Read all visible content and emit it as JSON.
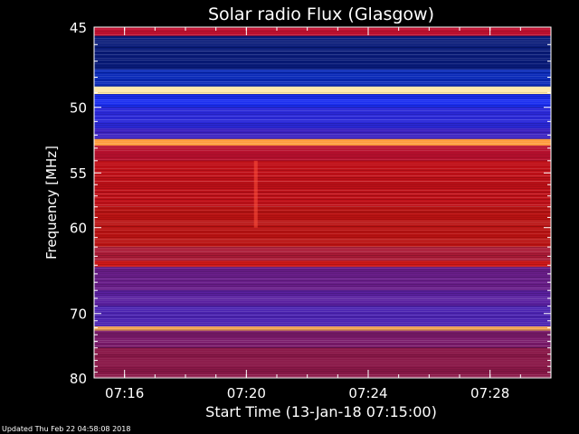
{
  "chart_data": {
    "type": "heatmap",
    "title": "Solar radio Flux (Glasgow)",
    "xlabel": "Start Time (13-Jan-18 07:15:00)",
    "ylabel": "Frequency [MHz]",
    "footer": "Updated Thu Feb 22 04:58:08 2018",
    "x_range": [
      "07:15:00",
      "07:30:00"
    ],
    "y_range": [
      45,
      80
    ],
    "y_scale": "reciprocal",
    "x_ticks": [
      "07:16",
      "07:20",
      "07:24",
      "07:28"
    ],
    "y_ticks": [
      45,
      50,
      55,
      60,
      70,
      80
    ],
    "colors": {
      "background": "#000000",
      "axis": "#ffffff",
      "low": "#0a1fd6",
      "mid": "#7a1a7a",
      "high": "#c8100c",
      "peak": "#ffe9a8"
    },
    "bands": [
      {
        "f1": 45.0,
        "f2": 45.5,
        "color": "#c01030"
      },
      {
        "f1": 45.5,
        "f2": 47.5,
        "color": "#081a78"
      },
      {
        "f1": 47.5,
        "f2": 48.6,
        "color": "#0a2ab8"
      },
      {
        "f1": 48.6,
        "f2": 49.1,
        "color": "#ffe9a8"
      },
      {
        "f1": 49.1,
        "f2": 50.0,
        "color": "#1a2ef0"
      },
      {
        "f1": 50.0,
        "f2": 51.5,
        "color": "#2a28d8"
      },
      {
        "f1": 51.5,
        "f2": 52.3,
        "color": "#3a20c0"
      },
      {
        "f1": 52.3,
        "f2": 52.8,
        "color": "#ff9a3a"
      },
      {
        "f1": 52.8,
        "f2": 54.0,
        "color": "#b8102e"
      },
      {
        "f1": 54.0,
        "f2": 58.0,
        "color": "#c01018"
      },
      {
        "f1": 58.0,
        "f2": 62.0,
        "color": "#b81212"
      },
      {
        "f1": 62.0,
        "f2": 63.5,
        "color": "#aa1a36"
      },
      {
        "f1": 63.5,
        "f2": 64.2,
        "color": "#d01818"
      },
      {
        "f1": 64.2,
        "f2": 67.0,
        "color": "#6a1e8a"
      },
      {
        "f1": 67.0,
        "f2": 69.0,
        "color": "#5a20a0"
      },
      {
        "f1": 69.0,
        "f2": 71.8,
        "color": "#4a22b0"
      },
      {
        "f1": 71.8,
        "f2": 72.4,
        "color": "#ffb060"
      },
      {
        "f1": 72.4,
        "f2": 75.0,
        "color": "#7a1a6a"
      },
      {
        "f1": 75.0,
        "f2": 80.0,
        "color": "#8a1848"
      }
    ]
  }
}
